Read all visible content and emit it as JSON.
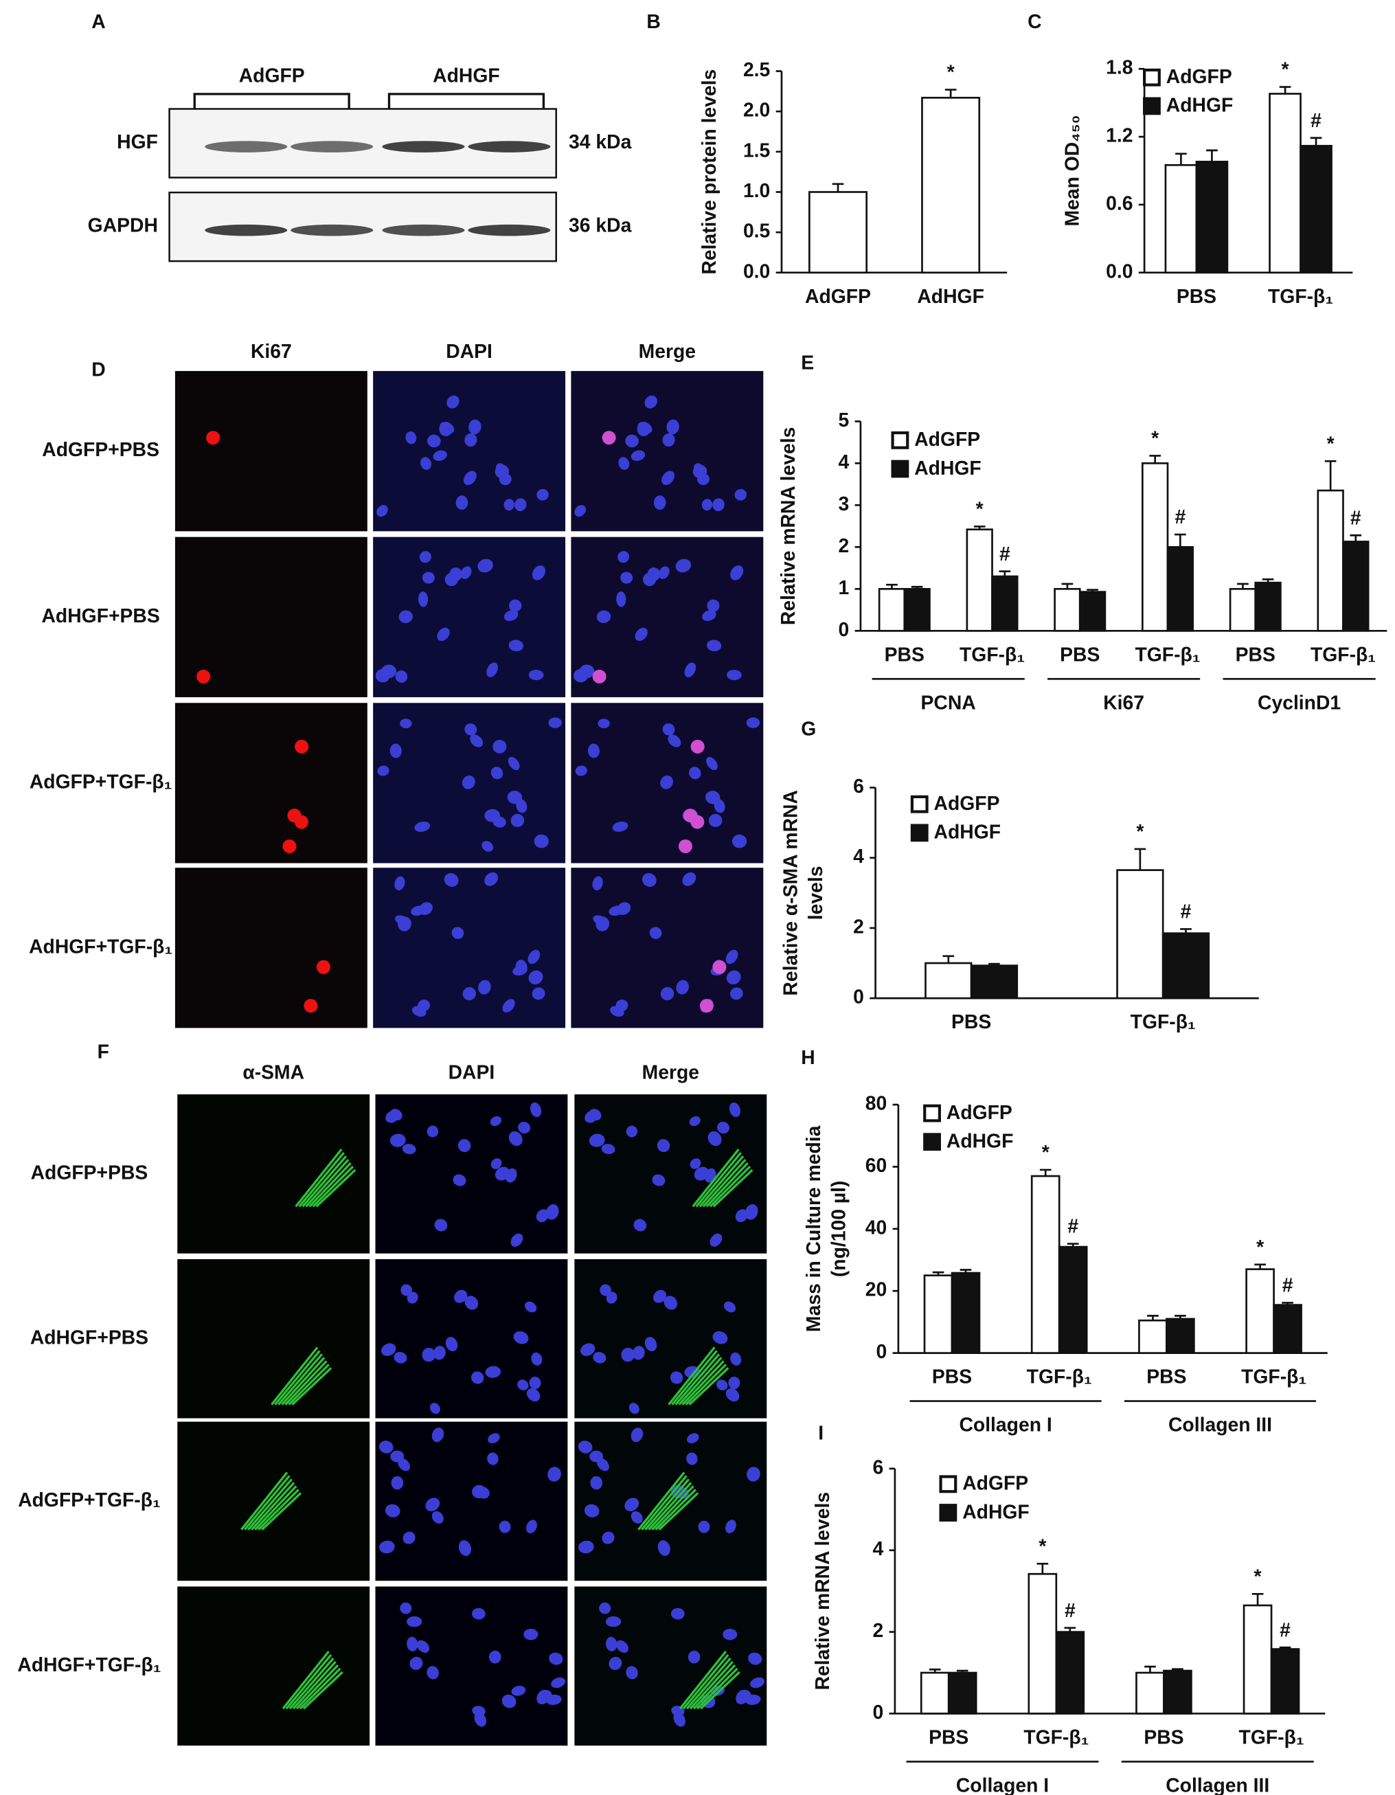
{
  "blot": {
    "label": "A",
    "groups": [
      "AdGFP",
      "AdHGF"
    ],
    "rows": [
      {
        "name": "HGF",
        "size": "34 kDa"
      },
      {
        "name": "GAPDH",
        "size": "36 kDa"
      }
    ]
  },
  "chart_data": [
    {
      "type": "bar",
      "label": "B",
      "ylabel": [
        "Relative protein levels"
      ],
      "categories": [
        "AdGFP",
        "AdHGF"
      ],
      "values": [
        1.0,
        2.17
      ],
      "errors": [
        0.1,
        0.1
      ],
      "markers": [
        null,
        "*"
      ],
      "color": "#ffffff",
      "ylim": [
        0,
        2.5
      ],
      "yticks": [
        {
          "value": 0,
          "label": "0.0"
        },
        0.5,
        {
          "value": 1,
          "label": "1.0"
        },
        1.5,
        {
          "value": 2,
          "label": "2.0"
        },
        2.5
      ]
    },
    {
      "type": "bar",
      "label": "C",
      "ylabel": [
        "Mean OD₄₅₀"
      ],
      "categories": [
        "PBS",
        "TGF-β₁"
      ],
      "series": [
        {
          "name": "AdGFP",
          "color": "#ffffff",
          "values": [
            0.95,
            1.58
          ],
          "errors": [
            0.1,
            0.06
          ],
          "markers": [
            null,
            "*"
          ]
        },
        {
          "name": "AdHGF",
          "color": "#111111",
          "values": [
            0.98,
            1.12
          ],
          "errors": [
            0.1,
            0.07
          ],
          "markers": [
            null,
            "#"
          ]
        }
      ],
      "ylim": [
        0,
        1.8
      ],
      "yticks": [
        {
          "value": 0,
          "label": "0.0"
        },
        0.6,
        1.2,
        1.8
      ]
    },
    {
      "type": "bar",
      "label": "E",
      "ylabel": [
        "Relative mRNA levels"
      ],
      "categories": [
        "PBS",
        "TGF-β₁",
        "PBS",
        "TGF-β₁",
        "PBS",
        "TGF-β₁"
      ],
      "groups": [
        "PCNA",
        "Ki67",
        "CyclinD1"
      ],
      "series": [
        {
          "name": "AdGFP",
          "color": "#ffffff",
          "values": [
            1.0,
            2.42,
            1.0,
            4.0,
            1.0,
            3.35
          ],
          "errors": [
            0.1,
            0.07,
            0.12,
            0.18,
            0.12,
            0.7
          ],
          "markers": [
            null,
            "*",
            null,
            "*",
            null,
            "*"
          ]
        },
        {
          "name": "AdHGF",
          "color": "#111111",
          "values": [
            1.0,
            1.3,
            0.93,
            2.0,
            1.15,
            2.13
          ],
          "errors": [
            0.05,
            0.12,
            0.05,
            0.3,
            0.08,
            0.15
          ],
          "markers": [
            null,
            "#",
            null,
            "#",
            null,
            "#"
          ]
        }
      ],
      "ylim": [
        0,
        5
      ],
      "yticks": [
        0,
        1,
        2,
        3,
        4,
        5
      ]
    },
    {
      "type": "bar",
      "label": "G",
      "ylabel": [
        "Relative α-SMA mRNA",
        "levels"
      ],
      "categories": [
        "PBS",
        "TGF-β₁"
      ],
      "series": [
        {
          "name": "AdGFP",
          "color": "#ffffff",
          "values": [
            1.0,
            3.65
          ],
          "errors": [
            0.2,
            0.6
          ],
          "markers": [
            null,
            "*"
          ]
        },
        {
          "name": "AdHGF",
          "color": "#111111",
          "values": [
            0.93,
            1.85
          ],
          "errors": [
            0.05,
            0.12
          ],
          "markers": [
            null,
            "#"
          ]
        }
      ],
      "ylim": [
        0,
        6
      ],
      "yticks": [
        0,
        2,
        4,
        6
      ]
    },
    {
      "type": "bar",
      "label": "H",
      "ylabel": [
        "Mass in Culture media",
        "(ng/100 µl)"
      ],
      "categories": [
        "PBS",
        "TGF-β₁",
        "PBS",
        "TGF-β₁"
      ],
      "groups": [
        "Collagen I",
        "Collagen III"
      ],
      "series": [
        {
          "name": "AdGFP",
          "color": "#ffffff",
          "values": [
            25,
            57,
            10.5,
            27
          ],
          "errors": [
            1,
            2,
            1.5,
            1.5
          ],
          "markers": [
            null,
            "*",
            null,
            "*"
          ]
        },
        {
          "name": "AdHGF",
          "color": "#111111",
          "values": [
            25.8,
            34.2,
            11,
            15.5
          ],
          "errors": [
            1,
            1,
            1,
            0.7
          ],
          "markers": [
            null,
            "#",
            null,
            "#"
          ]
        }
      ],
      "ylim": [
        0,
        80
      ],
      "yticks": [
        0,
        20,
        40,
        60,
        80
      ]
    },
    {
      "type": "bar",
      "label": "I",
      "ylabel": [
        "Relative mRNA levels"
      ],
      "categories": [
        "PBS",
        "TGF-β₁",
        "PBS",
        "TGF-β₁"
      ],
      "groups": [
        "Collagen I",
        "Collagen III"
      ],
      "series": [
        {
          "name": "AdGFP",
          "color": "#ffffff",
          "values": [
            1.0,
            3.42,
            1.0,
            2.65
          ],
          "errors": [
            0.08,
            0.25,
            0.15,
            0.28
          ],
          "markers": [
            null,
            "*",
            null,
            "*"
          ]
        },
        {
          "name": "AdHGF",
          "color": "#111111",
          "values": [
            1.0,
            2.0,
            1.05,
            1.58
          ],
          "errors": [
            0.05,
            0.1,
            0.04,
            0.04
          ],
          "markers": [
            null,
            "#",
            null,
            "#"
          ]
        }
      ],
      "ylim": [
        0,
        6
      ],
      "yticks": [
        0,
        2,
        4,
        6
      ]
    }
  ],
  "micrographs": [
    {
      "label": "D",
      "columns": [
        "Ki67",
        "DAPI",
        "Merge"
      ],
      "rows": [
        "AdGFP+PBS",
        "AdHGF+PBS",
        "AdGFP+TGF-β₁",
        "AdHGF+TGF-β₁"
      ]
    },
    {
      "label": "F",
      "columns": [
        "α-SMA",
        "DAPI",
        "Merge"
      ],
      "rows": [
        "AdGFP+PBS",
        "AdHGF+PBS",
        "AdGFP+TGF-β₁",
        "AdHGF+TGF-β₁"
      ]
    }
  ]
}
